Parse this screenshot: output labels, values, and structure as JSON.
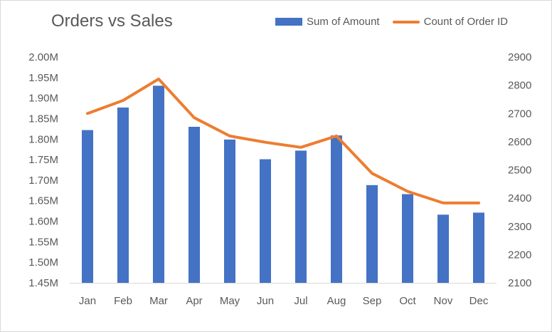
{
  "chart_data": {
    "type": "bar",
    "title": "Orders vs Sales",
    "categories": [
      "Jan",
      "Feb",
      "Mar",
      "Apr",
      "May",
      "Jun",
      "Jul",
      "Aug",
      "Sep",
      "Oct",
      "Nov",
      "Dec"
    ],
    "series": [
      {
        "name": "Sum of Amount",
        "type": "bar",
        "axis": "left",
        "color": "#4472c4",
        "values": [
          1822000,
          1877000,
          1930000,
          1830000,
          1799000,
          1751000,
          1772000,
          1809000,
          1688000,
          1666000,
          1616000,
          1621000
        ]
      },
      {
        "name": "Count of Order ID",
        "type": "line",
        "axis": "right",
        "color": "#ed7d31",
        "values": [
          2700,
          2746,
          2822,
          2685,
          2620,
          2598,
          2580,
          2620,
          2488,
          2424,
          2383,
          2383
        ]
      }
    ],
    "y_left": {
      "min": 1450000,
      "max": 2000000,
      "ticks": [
        1450000,
        1500000,
        1550000,
        1600000,
        1650000,
        1700000,
        1750000,
        1800000,
        1850000,
        1900000,
        1950000,
        2000000
      ],
      "tick_labels": [
        "1.45M",
        "1.50M",
        "1.55M",
        "1.60M",
        "1.65M",
        "1.70M",
        "1.75M",
        "1.80M",
        "1.85M",
        "1.90M",
        "1.95M",
        "2.00M"
      ]
    },
    "y_right": {
      "min": 2100,
      "max": 2900,
      "ticks": [
        2100,
        2200,
        2300,
        2400,
        2500,
        2600,
        2700,
        2800,
        2900
      ],
      "tick_labels": [
        "2100",
        "2200",
        "2300",
        "2400",
        "2500",
        "2600",
        "2700",
        "2800",
        "2900"
      ]
    },
    "grid": false,
    "legend": "top-right"
  }
}
